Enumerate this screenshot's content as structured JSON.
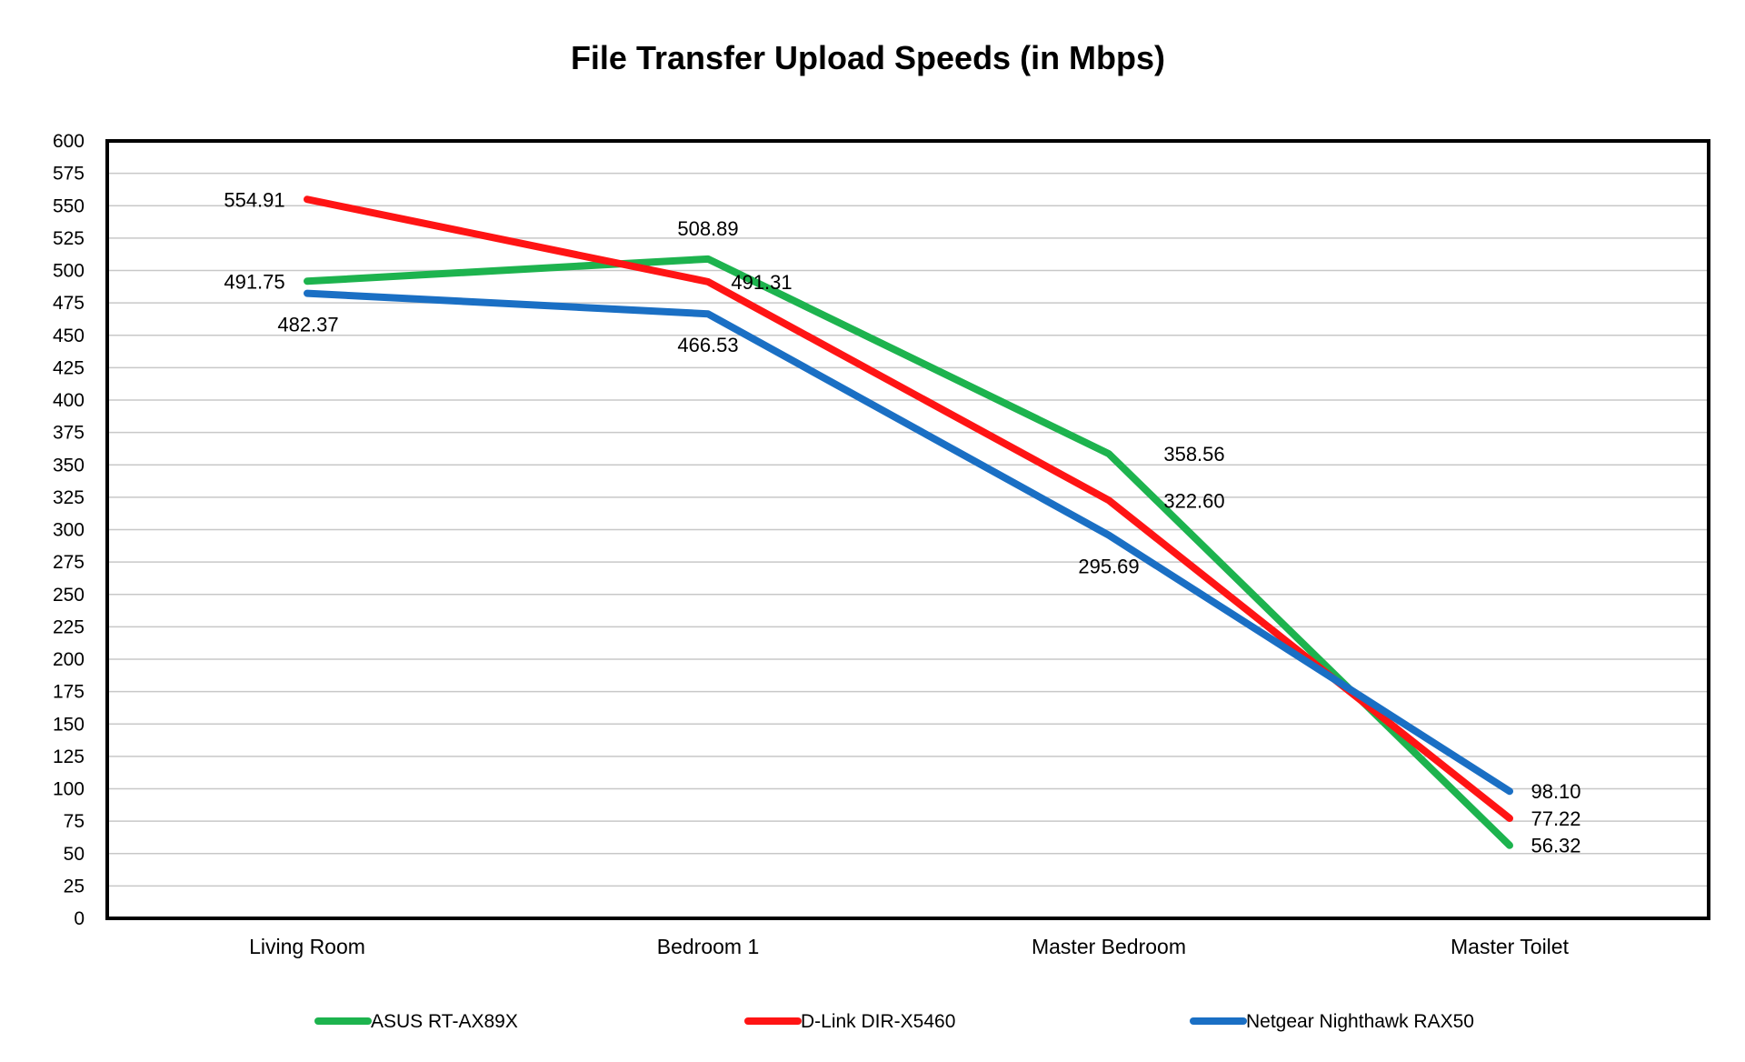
{
  "chart_data": {
    "type": "line",
    "title": "File Transfer Upload Speeds (in Mbps)",
    "categories": [
      "Living Room",
      "Bedroom 1",
      "Master Bedroom",
      "Master Toilet"
    ],
    "ylim": [
      0,
      600
    ],
    "ytick_step": 25,
    "grid": true,
    "legend_position": "bottom",
    "series": [
      {
        "name": "ASUS RT-AX89X",
        "color": "#1db34e",
        "values": [
          491.75,
          508.89,
          358.56,
          56.32
        ],
        "labels": [
          "491.75",
          "508.89",
          "358.56",
          "56.32"
        ]
      },
      {
        "name": "D-Link DIR-X5460",
        "color": "#ff1414",
        "values": [
          554.91,
          491.31,
          322.6,
          77.22
        ],
        "labels": [
          "554.91",
          "491.31",
          "322.60",
          "77.22"
        ]
      },
      {
        "name": "Netgear Nighthawk RAX50",
        "color": "#1a6fc4",
        "values": [
          482.37,
          466.53,
          295.69,
          98.1
        ],
        "labels": [
          "482.37",
          "466.53",
          "295.69",
          "98.10"
        ]
      }
    ]
  }
}
